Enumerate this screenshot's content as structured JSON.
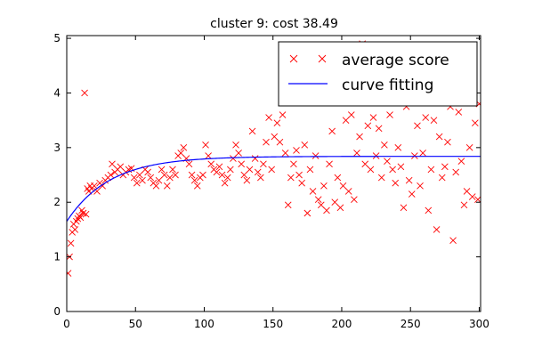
{
  "chart_data": {
    "type": "scatter",
    "title": "cluster 9: cost 38.49",
    "xlabel": "",
    "ylabel": "",
    "xlim": [
      0,
      301
    ],
    "ylim": [
      0,
      5.05
    ],
    "x_ticks": [
      0,
      50,
      100,
      150,
      200,
      250,
      300
    ],
    "y_ticks": [
      0,
      1,
      2,
      3,
      4,
      5
    ],
    "grid": false,
    "legend_position": "top-right",
    "colors": {
      "scatter": "#ff0000",
      "curve": "#0000ff"
    },
    "series": [
      {
        "name": "average score",
        "kind": "scatter",
        "marker": "x",
        "points": [
          [
            1,
            0.7
          ],
          [
            2,
            1.0
          ],
          [
            3,
            1.25
          ],
          [
            4,
            1.45
          ],
          [
            5,
            1.6
          ],
          [
            6,
            1.5
          ],
          [
            7,
            1.65
          ],
          [
            8,
            1.7
          ],
          [
            9,
            1.75
          ],
          [
            10,
            1.72
          ],
          [
            11,
            1.85
          ],
          [
            12,
            1.8
          ],
          [
            13,
            4.0
          ],
          [
            14,
            1.78
          ],
          [
            15,
            2.25
          ],
          [
            16,
            2.2
          ],
          [
            17,
            2.3
          ],
          [
            18,
            2.25
          ],
          [
            20,
            2.3
          ],
          [
            22,
            2.2
          ],
          [
            24,
            2.35
          ],
          [
            26,
            2.3
          ],
          [
            28,
            2.4
          ],
          [
            30,
            2.45
          ],
          [
            32,
            2.5
          ],
          [
            33,
            2.7
          ],
          [
            35,
            2.55
          ],
          [
            37,
            2.6
          ],
          [
            39,
            2.65
          ],
          [
            41,
            2.5
          ],
          [
            43,
            2.55
          ],
          [
            45,
            2.6
          ],
          [
            47,
            2.62
          ],
          [
            49,
            2.45
          ],
          [
            51,
            2.35
          ],
          [
            53,
            2.5
          ],
          [
            55,
            2.4
          ],
          [
            57,
            2.6
          ],
          [
            59,
            2.55
          ],
          [
            61,
            2.45
          ],
          [
            63,
            2.35
          ],
          [
            65,
            2.3
          ],
          [
            67,
            2.4
          ],
          [
            69,
            2.6
          ],
          [
            71,
            2.5
          ],
          [
            73,
            2.3
          ],
          [
            75,
            2.45
          ],
          [
            77,
            2.6
          ],
          [
            79,
            2.5
          ],
          [
            81,
            2.85
          ],
          [
            83,
            2.9
          ],
          [
            85,
            3.0
          ],
          [
            87,
            2.8
          ],
          [
            89,
            2.7
          ],
          [
            91,
            2.5
          ],
          [
            93,
            2.4
          ],
          [
            95,
            2.3
          ],
          [
            97,
            2.45
          ],
          [
            99,
            2.5
          ],
          [
            101,
            3.05
          ],
          [
            103,
            2.85
          ],
          [
            105,
            2.7
          ],
          [
            107,
            2.6
          ],
          [
            109,
            2.55
          ],
          [
            111,
            2.65
          ],
          [
            113,
            2.5
          ],
          [
            115,
            2.35
          ],
          [
            117,
            2.45
          ],
          [
            119,
            2.6
          ],
          [
            121,
            2.8
          ],
          [
            123,
            3.05
          ],
          [
            125,
            2.9
          ],
          [
            127,
            2.7
          ],
          [
            129,
            2.5
          ],
          [
            131,
            2.4
          ],
          [
            133,
            2.6
          ],
          [
            135,
            3.3
          ],
          [
            137,
            2.8
          ],
          [
            139,
            2.55
          ],
          [
            141,
            2.45
          ],
          [
            143,
            2.7
          ],
          [
            145,
            3.1
          ],
          [
            147,
            3.55
          ],
          [
            149,
            2.6
          ],
          [
            151,
            3.2
          ],
          [
            153,
            3.45
          ],
          [
            155,
            3.1
          ],
          [
            157,
            3.6
          ],
          [
            159,
            2.9
          ],
          [
            161,
            1.95
          ],
          [
            163,
            2.45
          ],
          [
            165,
            2.7
          ],
          [
            167,
            2.95
          ],
          [
            169,
            2.5
          ],
          [
            171,
            2.35
          ],
          [
            173,
            3.05
          ],
          [
            175,
            1.8
          ],
          [
            177,
            2.6
          ],
          [
            179,
            2.2
          ],
          [
            181,
            2.85
          ],
          [
            183,
            2.05
          ],
          [
            185,
            1.95
          ],
          [
            187,
            2.3
          ],
          [
            189,
            1.85
          ],
          [
            191,
            2.7
          ],
          [
            193,
            3.3
          ],
          [
            195,
            2.0
          ],
          [
            197,
            2.45
          ],
          [
            199,
            1.9
          ],
          [
            201,
            2.3
          ],
          [
            203,
            3.5
          ],
          [
            205,
            2.2
          ],
          [
            207,
            3.6
          ],
          [
            209,
            2.05
          ],
          [
            211,
            2.9
          ],
          [
            213,
            3.2
          ],
          [
            215,
            4.9
          ],
          [
            217,
            2.7
          ],
          [
            219,
            3.4
          ],
          [
            221,
            2.6
          ],
          [
            223,
            3.55
          ],
          [
            225,
            2.85
          ],
          [
            227,
            3.35
          ],
          [
            229,
            2.45
          ],
          [
            231,
            3.05
          ],
          [
            233,
            2.75
          ],
          [
            235,
            3.6
          ],
          [
            237,
            2.6
          ],
          [
            239,
            2.35
          ],
          [
            241,
            3.0
          ],
          [
            243,
            2.65
          ],
          [
            245,
            1.9
          ],
          [
            247,
            3.75
          ],
          [
            249,
            2.4
          ],
          [
            251,
            2.15
          ],
          [
            253,
            2.85
          ],
          [
            255,
            3.4
          ],
          [
            257,
            2.3
          ],
          [
            259,
            2.9
          ],
          [
            261,
            3.55
          ],
          [
            263,
            1.85
          ],
          [
            265,
            2.6
          ],
          [
            267,
            3.5
          ],
          [
            269,
            1.5
          ],
          [
            271,
            3.2
          ],
          [
            273,
            2.45
          ],
          [
            275,
            2.65
          ],
          [
            277,
            3.1
          ],
          [
            279,
            3.75
          ],
          [
            281,
            1.3
          ],
          [
            283,
            2.55
          ],
          [
            285,
            3.65
          ],
          [
            287,
            2.75
          ],
          [
            289,
            1.95
          ],
          [
            291,
            2.2
          ],
          [
            293,
            3.0
          ],
          [
            295,
            2.1
          ],
          [
            297,
            3.45
          ],
          [
            299,
            2.05
          ],
          [
            300,
            3.8
          ]
        ]
      },
      {
        "name": "curve fitting",
        "kind": "line",
        "model": {
          "asymptote": 2.84,
          "start": 1.65,
          "rate": 0.032
        }
      }
    ]
  }
}
